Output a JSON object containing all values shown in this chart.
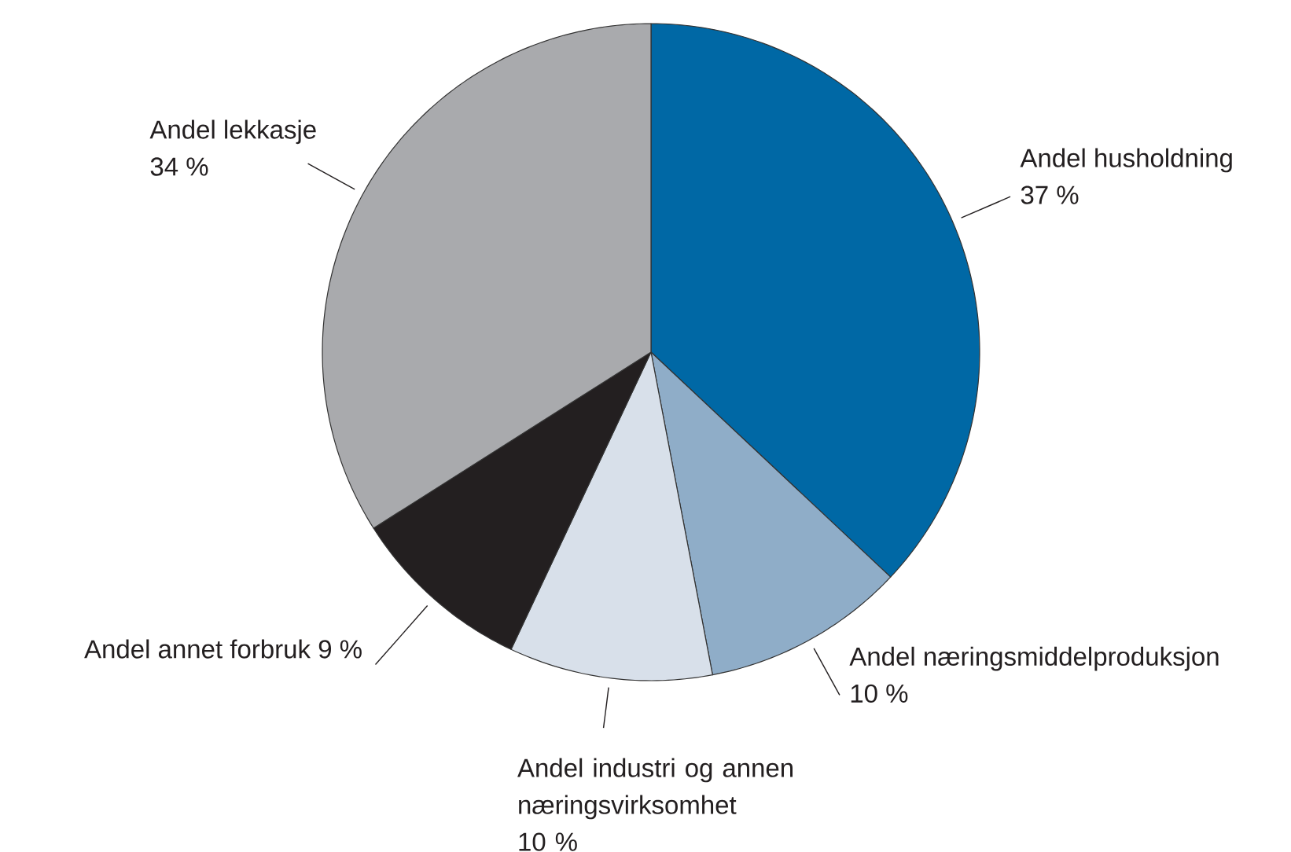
{
  "chart_data": {
    "type": "pie",
    "categories": [
      "Andel husholdning",
      "Andel næringsmiddelproduksjon",
      "Andel industri og annen næringsvirksomhet",
      "Andel annet forbruk",
      "Andel lekkasje"
    ],
    "values": [
      37,
      10,
      10,
      9,
      34
    ],
    "value_labels": [
      "37 %",
      "10 %",
      "10 %",
      "9 %",
      "34 %"
    ],
    "colors": [
      "#0068a5",
      "#8fadc8",
      "#d8e0ea",
      "#231f20",
      "#a9aaad"
    ]
  }
}
